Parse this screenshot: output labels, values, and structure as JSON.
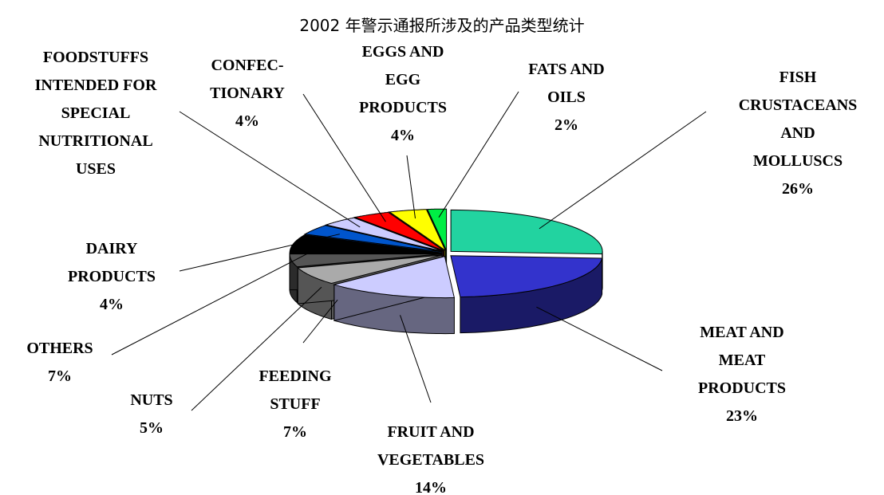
{
  "chart_data": {
    "type": "pie3d",
    "title": "2002 年警示通报所涉及的产品类型统计",
    "categories": [
      "FISH\nCRUSTACEANS\nAND\nMOLLUSCS",
      "MEAT AND\nMEAT\nPRODUCTS",
      "FRUIT AND\nVEGETABLES",
      "FEEDING\nSTUFF",
      "NUTS",
      "OTHERS",
      "DAIRY\nPRODUCTS",
      "FOODSTUFFS\nINTENDED FOR\nSPECIAL\nNUTRITIONAL\nUSES",
      "CONFEC-\nTIONARY",
      "EGGS AND\nEGG\nPRODUCTS",
      "FATS AND\nOILS"
    ],
    "values": [
      26,
      23,
      14,
      7,
      5,
      7,
      4,
      4,
      4,
      4,
      2
    ],
    "value_labels": [
      "26%",
      "23%",
      "14%",
      "7%",
      "5%",
      "7%",
      "4%",
      null,
      "4%",
      "4%",
      "2%"
    ],
    "colors": [
      "#22d3a0",
      "#3333cc",
      "#ccccff",
      "#aaaaaa",
      "#555555",
      "#000000",
      "#0055cc",
      "#ccccff",
      "#ff0000",
      "#ffff00",
      "#00ee44"
    ]
  }
}
